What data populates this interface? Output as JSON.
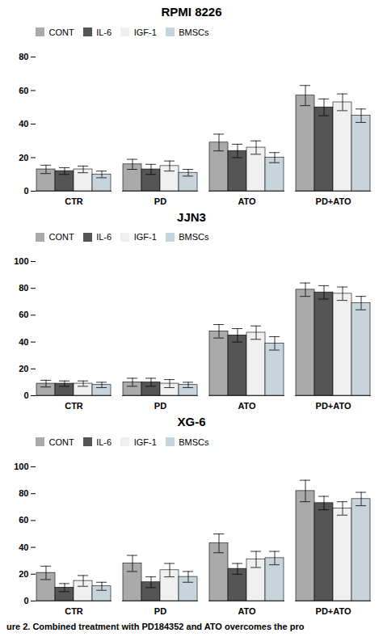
{
  "chart_data": [
    {
      "type": "bar",
      "title": "RPMI 8226",
      "categories": [
        "CTR",
        "PD",
        "ATO",
        "PD+ATO"
      ],
      "series": [
        {
          "name": "CONT",
          "color": "#aaaaaa",
          "values": [
            13,
            16,
            29,
            57
          ],
          "errors": [
            2.5,
            3.0,
            5.0,
            6.0
          ]
        },
        {
          "name": "IL-6",
          "color": "#555555",
          "values": [
            12,
            13,
            24,
            50
          ],
          "errors": [
            2.0,
            3.0,
            4.0,
            5.0
          ]
        },
        {
          "name": "IGF-1",
          "color": "#f0f0f0",
          "values": [
            13,
            15,
            26,
            53
          ],
          "errors": [
            2.0,
            3.0,
            4.0,
            5.0
          ]
        },
        {
          "name": "BMSCs",
          "color": "#c8d4dc",
          "values": [
            10,
            11,
            20,
            45
          ],
          "errors": [
            2.0,
            2.0,
            3.0,
            4.0
          ]
        }
      ],
      "ylim": [
        0,
        80
      ],
      "yticks": [
        0,
        20,
        40,
        60,
        80
      ],
      "grid": false,
      "legend": "upper left"
    },
    {
      "type": "bar",
      "title": "JJN3",
      "categories": [
        "CTR",
        "PD",
        "ATO",
        "PD+ATO"
      ],
      "series": [
        {
          "name": "CONT",
          "color": "#aaaaaa",
          "values": [
            9,
            10,
            48,
            79
          ],
          "errors": [
            2.5,
            3.0,
            5.0,
            5.0
          ]
        },
        {
          "name": "IL-6",
          "color": "#555555",
          "values": [
            9,
            10,
            45,
            77
          ],
          "errors": [
            2.0,
            3.0,
            5.0,
            5.0
          ]
        },
        {
          "name": "IGF-1",
          "color": "#f0f0f0",
          "values": [
            9,
            9,
            47,
            76
          ],
          "errors": [
            2.0,
            3.0,
            5.0,
            5.0
          ]
        },
        {
          "name": "BMSCs",
          "color": "#c8d4dc",
          "values": [
            8,
            8,
            39,
            69
          ],
          "errors": [
            2.0,
            2.0,
            5.0,
            5.0
          ]
        }
      ],
      "ylim": [
        0,
        100
      ],
      "yticks": [
        0,
        20,
        40,
        60,
        80,
        100
      ],
      "grid": false,
      "legend": "upper left"
    },
    {
      "type": "bar",
      "title": "XG-6",
      "categories": [
        "CTR",
        "PD",
        "ATO",
        "PD+ATO"
      ],
      "series": [
        {
          "name": "CONT",
          "color": "#aaaaaa",
          "values": [
            21,
            28,
            43,
            82
          ],
          "errors": [
            5.0,
            6.0,
            7.0,
            8.0
          ]
        },
        {
          "name": "IL-6",
          "color": "#555555",
          "values": [
            10,
            14,
            24,
            73
          ],
          "errors": [
            3.0,
            4.0,
            4.0,
            5.0
          ]
        },
        {
          "name": "IGF-1",
          "color": "#f0f0f0",
          "values": [
            15,
            23,
            31,
            69
          ],
          "errors": [
            4.0,
            5.0,
            6.0,
            5.0
          ]
        },
        {
          "name": "BMSCs",
          "color": "#c8d4dc",
          "values": [
            11,
            18,
            32,
            76
          ],
          "errors": [
            3.0,
            4.0,
            5.0,
            5.0
          ]
        }
      ],
      "ylim": [
        0,
        100
      ],
      "yticks": [
        0,
        20,
        40,
        60,
        80,
        100
      ],
      "grid": false,
      "legend": "upper left"
    }
  ],
  "caption": "ure 2. Combined treatment with PD184352 and ATO overcomes the pro"
}
